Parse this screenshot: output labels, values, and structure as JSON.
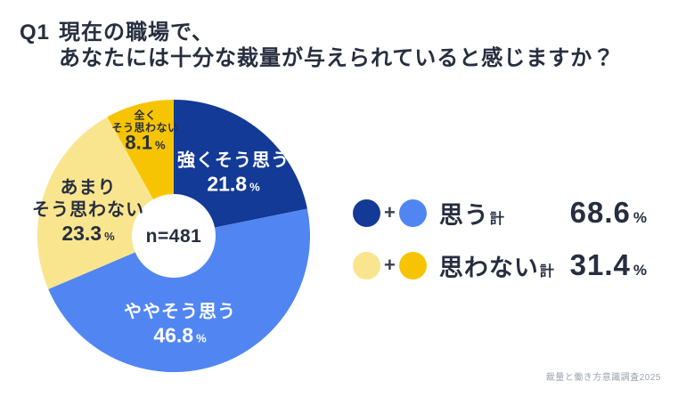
{
  "title": {
    "q_number": "Q1",
    "line1": "現在の職場で、",
    "line2": "あなたには十分な裁量が与えられていると感じますか？"
  },
  "chart_data": {
    "type": "pie",
    "subtype": "donut",
    "title": "Q1 現在の職場で、あなたには十分な裁量が与えられていると感じますか？",
    "categories": [
      "強くそう思う",
      "ややそう思う",
      "あまりそう思わない",
      "全くそう思わない"
    ],
    "values": [
      21.8,
      46.8,
      23.3,
      8.1
    ],
    "unit": "%",
    "colors": [
      "#133A96",
      "#5186F2",
      "#FAE58F",
      "#F7C403"
    ],
    "start_angle_deg": 0,
    "direction": "clockwise",
    "inner_radius_ratio": 0.31,
    "center_label": "n=481",
    "aggregates": [
      {
        "label": "思う計",
        "members": [
          "強くそう思う",
          "ややそう思う"
        ],
        "value": 68.6
      },
      {
        "label": "思わない計",
        "members": [
          "あまりそう思わない",
          "全くそう思わない"
        ],
        "value": 31.4
      }
    ]
  },
  "slice_labels": [
    {
      "lines": [
        "強くそう思う"
      ],
      "value": "21.8",
      "unit": "%"
    },
    {
      "lines": [
        "ややそう思う"
      ],
      "value": "46.8",
      "unit": "%"
    },
    {
      "lines": [
        "あまり",
        "そう思わない"
      ],
      "value": "23.3",
      "unit": "%"
    },
    {
      "lines": [
        "全く",
        "そう思わない"
      ],
      "value": "8.1",
      "unit": "%"
    }
  ],
  "center": {
    "label": "n=481"
  },
  "legend": {
    "rows": [
      {
        "swatch1": "#133A96",
        "swatch2": "#5186F2",
        "plus": "+",
        "label": "思う",
        "suffix": "計",
        "value": "68.6",
        "unit": "%"
      },
      {
        "swatch1": "#FAE58F",
        "swatch2": "#F7C403",
        "plus": "+",
        "label": "思わない",
        "suffix": "計",
        "value": "31.4",
        "unit": "%"
      }
    ]
  },
  "footer": {
    "source": "裁量と働き方意識調査2025"
  }
}
